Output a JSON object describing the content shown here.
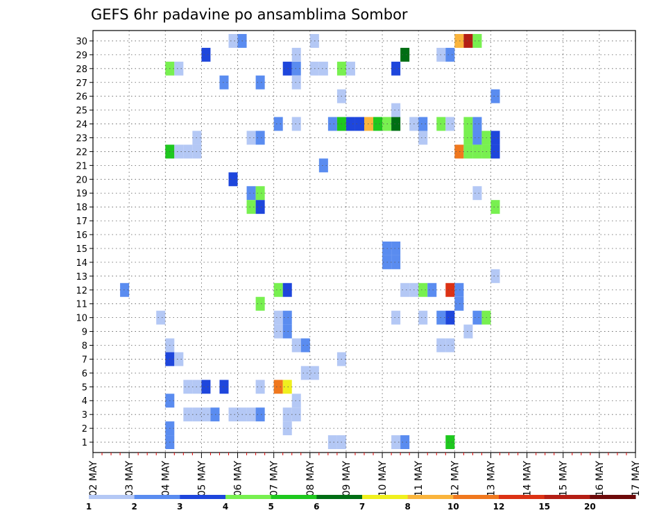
{
  "chart_data": {
    "type": "heatmap",
    "title": "GEFS 6hr padavine po ansamblima Sombor",
    "x_tick_labels": [
      "02 MAY",
      "03 MAY",
      "04 MAY",
      "05 MAY",
      "06 MAY",
      "07 MAY",
      "08 MAY",
      "09 MAY",
      "10 MAY",
      "11 MAY",
      "12 MAY",
      "13 MAY",
      "14 MAY",
      "15 MAY",
      "16 MAY",
      "17 MAY"
    ],
    "y_tick_labels": [
      "1",
      "2",
      "3",
      "4",
      "5",
      "6",
      "7",
      "8",
      "9",
      "10",
      "11",
      "12",
      "13",
      "14",
      "15",
      "16",
      "17",
      "18",
      "19",
      "20",
      "21",
      "22",
      "23",
      "24",
      "25",
      "26",
      "27",
      "28",
      "29",
      "30"
    ],
    "x_range": [
      0,
      60
    ],
    "y_range": [
      1,
      30
    ],
    "grid": true,
    "colorbar": {
      "labels": [
        "1",
        "2",
        "3",
        "4",
        "5",
        "6",
        "7",
        "8",
        "10",
        "12",
        "15",
        "20"
      ],
      "colors": [
        "#b4c8f5",
        "#5a8cf0",
        "#1e46dc",
        "#78f050",
        "#1ec81e",
        "#006e14",
        "#f0f01e",
        "#fab43c",
        "#f0781e",
        "#dc3214",
        "#b41e14",
        "#6e0a0a"
      ]
    },
    "cells": [
      {
        "x": 8,
        "y": 1,
        "c": 1
      },
      {
        "x": 8,
        "y": 2,
        "c": 1
      },
      {
        "x": 8,
        "y": 4,
        "c": 1
      },
      {
        "x": 8,
        "y": 7,
        "c": 2
      },
      {
        "x": 8,
        "y": 8,
        "c": 0
      },
      {
        "x": 8,
        "y": 22,
        "c": 4
      },
      {
        "x": 8,
        "y": 28,
        "c": 3
      },
      {
        "x": 7,
        "y": 10,
        "c": 0
      },
      {
        "x": 3,
        "y": 12,
        "c": 1
      },
      {
        "x": 9,
        "y": 7,
        "c": 0
      },
      {
        "x": 9,
        "y": 22,
        "c": 0
      },
      {
        "x": 9,
        "y": 28,
        "c": 0
      },
      {
        "x": 10,
        "y": 22,
        "c": 0
      },
      {
        "x": 10,
        "y": 5,
        "c": 0
      },
      {
        "x": 10,
        "y": 3,
        "c": 0
      },
      {
        "x": 11,
        "y": 23,
        "c": 0
      },
      {
        "x": 11,
        "y": 22,
        "c": 0
      },
      {
        "x": 11,
        "y": 5,
        "c": 0
      },
      {
        "x": 11,
        "y": 3,
        "c": 0
      },
      {
        "x": 12,
        "y": 5,
        "c": 2
      },
      {
        "x": 12,
        "y": 3,
        "c": 0
      },
      {
        "x": 12,
        "y": 29,
        "c": 2
      },
      {
        "x": 13,
        "y": 3,
        "c": 1
      },
      {
        "x": 14,
        "y": 5,
        "c": 2
      },
      {
        "x": 14,
        "y": 27,
        "c": 1
      },
      {
        "x": 15,
        "y": 30,
        "c": 0
      },
      {
        "x": 16,
        "y": 30,
        "c": 1
      },
      {
        "x": 15,
        "y": 20,
        "c": 2
      },
      {
        "x": 15,
        "y": 3,
        "c": 0
      },
      {
        "x": 16,
        "y": 3,
        "c": 0
      },
      {
        "x": 17,
        "y": 23,
        "c": 0
      },
      {
        "x": 18,
        "y": 23,
        "c": 1
      },
      {
        "x": 17,
        "y": 19,
        "c": 1
      },
      {
        "x": 18,
        "y": 19,
        "c": 3
      },
      {
        "x": 17,
        "y": 18,
        "c": 3
      },
      {
        "x": 18,
        "y": 18,
        "c": 2
      },
      {
        "x": 18,
        "y": 27,
        "c": 1
      },
      {
        "x": 18,
        "y": 11,
        "c": 3
      },
      {
        "x": 18,
        "y": 5,
        "c": 0
      },
      {
        "x": 17,
        "y": 3,
        "c": 0
      },
      {
        "x": 18,
        "y": 3,
        "c": 1
      },
      {
        "x": 20,
        "y": 24,
        "c": 1
      },
      {
        "x": 20,
        "y": 12,
        "c": 3
      },
      {
        "x": 21,
        "y": 12,
        "c": 2
      },
      {
        "x": 20,
        "y": 10,
        "c": 0
      },
      {
        "x": 21,
        "y": 10,
        "c": 1
      },
      {
        "x": 20,
        "y": 9,
        "c": 0
      },
      {
        "x": 21,
        "y": 9,
        "c": 1
      },
      {
        "x": 20,
        "y": 5,
        "c": 8
      },
      {
        "x": 21,
        "y": 5,
        "c": 6
      },
      {
        "x": 21,
        "y": 28,
        "c": 2
      },
      {
        "x": 22,
        "y": 28,
        "c": 1
      },
      {
        "x": 22,
        "y": 29,
        "c": 0
      },
      {
        "x": 22,
        "y": 27,
        "c": 0
      },
      {
        "x": 22,
        "y": 8,
        "c": 0
      },
      {
        "x": 23,
        "y": 8,
        "c": 1
      },
      {
        "x": 22,
        "y": 4,
        "c": 0
      },
      {
        "x": 21,
        "y": 3,
        "c": 0
      },
      {
        "x": 22,
        "y": 3,
        "c": 0
      },
      {
        "x": 21,
        "y": 2,
        "c": 0
      },
      {
        "x": 22,
        "y": 24,
        "c": 0
      },
      {
        "x": 23,
        "y": 6,
        "c": 0
      },
      {
        "x": 24,
        "y": 6,
        "c": 0
      },
      {
        "x": 24,
        "y": 30,
        "c": 0
      },
      {
        "x": 24,
        "y": 28,
        "c": 0
      },
      {
        "x": 25,
        "y": 28,
        "c": 0
      },
      {
        "x": 25,
        "y": 21,
        "c": 1
      },
      {
        "x": 26,
        "y": 24,
        "c": 1
      },
      {
        "x": 27,
        "y": 26,
        "c": 0
      },
      {
        "x": 27,
        "y": 24,
        "c": 4
      },
      {
        "x": 28,
        "y": 24,
        "c": 2
      },
      {
        "x": 29,
        "y": 24,
        "c": 2
      },
      {
        "x": 30,
        "y": 24,
        "c": 7
      },
      {
        "x": 31,
        "y": 24,
        "c": 4
      },
      {
        "x": 32,
        "y": 24,
        "c": 3
      },
      {
        "x": 33,
        "y": 24,
        "c": 5
      },
      {
        "x": 26,
        "y": 1,
        "c": 0
      },
      {
        "x": 27,
        "y": 1,
        "c": 0
      },
      {
        "x": 27,
        "y": 28,
        "c": 3
      },
      {
        "x": 28,
        "y": 28,
        "c": 0
      },
      {
        "x": 27,
        "y": 7,
        "c": 0
      },
      {
        "x": 33,
        "y": 25,
        "c": 0
      },
      {
        "x": 32,
        "y": 14,
        "c": 1
      },
      {
        "x": 33,
        "y": 14,
        "c": 1
      },
      {
        "x": 32,
        "y": 15,
        "c": 1
      },
      {
        "x": 33,
        "y": 15,
        "c": 1
      },
      {
        "x": 33,
        "y": 1,
        "c": 0
      },
      {
        "x": 34,
        "y": 1,
        "c": 1
      },
      {
        "x": 34,
        "y": 29,
        "c": 5
      },
      {
        "x": 33,
        "y": 28,
        "c": 2
      },
      {
        "x": 33,
        "y": 10,
        "c": 0
      },
      {
        "x": 34,
        "y": 12,
        "c": 0
      },
      {
        "x": 35,
        "y": 12,
        "c": 0
      },
      {
        "x": 36,
        "y": 12,
        "c": 3
      },
      {
        "x": 37,
        "y": 12,
        "c": 1
      },
      {
        "x": 35,
        "y": 24,
        "c": 0
      },
      {
        "x": 36,
        "y": 24,
        "c": 1
      },
      {
        "x": 36,
        "y": 23,
        "c": 0
      },
      {
        "x": 36,
        "y": 10,
        "c": 0
      },
      {
        "x": 38,
        "y": 29,
        "c": 0
      },
      {
        "x": 39,
        "y": 29,
        "c": 1
      },
      {
        "x": 38,
        "y": 24,
        "c": 3
      },
      {
        "x": 39,
        "y": 24,
        "c": 0
      },
      {
        "x": 38,
        "y": 10,
        "c": 1
      },
      {
        "x": 39,
        "y": 10,
        "c": 2
      },
      {
        "x": 38,
        "y": 8,
        "c": 0
      },
      {
        "x": 39,
        "y": 8,
        "c": 0
      },
      {
        "x": 39,
        "y": 1,
        "c": 4
      },
      {
        "x": 39,
        "y": 12,
        "c": 9
      },
      {
        "x": 40,
        "y": 30,
        "c": 7
      },
      {
        "x": 41,
        "y": 30,
        "c": 10
      },
      {
        "x": 42,
        "y": 30,
        "c": 3
      },
      {
        "x": 40,
        "y": 22,
        "c": 8
      },
      {
        "x": 41,
        "y": 23,
        "c": 3
      },
      {
        "x": 41,
        "y": 22,
        "c": 3
      },
      {
        "x": 41,
        "y": 24,
        "c": 3
      },
      {
        "x": 42,
        "y": 24,
        "c": 1
      },
      {
        "x": 42,
        "y": 23,
        "c": 1
      },
      {
        "x": 42,
        "y": 22,
        "c": 3
      },
      {
        "x": 43,
        "y": 23,
        "c": 3
      },
      {
        "x": 43,
        "y": 22,
        "c": 3
      },
      {
        "x": 44,
        "y": 23,
        "c": 2
      },
      {
        "x": 44,
        "y": 22,
        "c": 2
      },
      {
        "x": 40,
        "y": 12,
        "c": 1
      },
      {
        "x": 40,
        "y": 11,
        "c": 1
      },
      {
        "x": 41,
        "y": 9,
        "c": 0
      },
      {
        "x": 42,
        "y": 19,
        "c": 0
      },
      {
        "x": 42,
        "y": 10,
        "c": 1
      },
      {
        "x": 43,
        "y": 10,
        "c": 3
      },
      {
        "x": 44,
        "y": 26,
        "c": 1
      },
      {
        "x": 44,
        "y": 18,
        "c": 3
      },
      {
        "x": 44,
        "y": 13,
        "c": 0
      }
    ]
  }
}
